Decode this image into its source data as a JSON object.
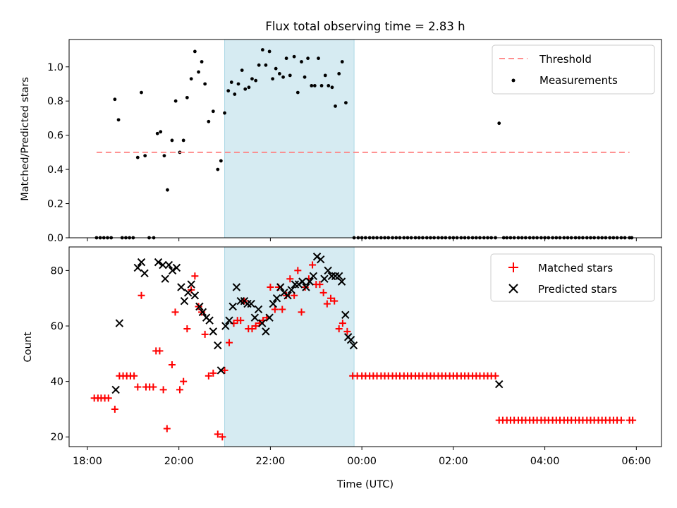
{
  "title": "Flux total observing time = 2.83 h",
  "chart_data": [
    {
      "type": "scatter",
      "ylabel": "Matched/Predicted stars",
      "xlim_hours": [
        17.6,
        30.55
      ],
      "ylim": [
        0,
        1.16
      ],
      "yticks": [
        0.0,
        0.2,
        0.4,
        0.6,
        0.8,
        1.0
      ],
      "ytick_labels": [
        "0.0",
        "0.2",
        "0.4",
        "0.6",
        "0.8",
        "1.0"
      ],
      "legend_position": "top-right",
      "shaded_interval_hours": [
        21.0,
        23.83
      ],
      "threshold_value": 0.5,
      "threshold_x_range_hours": [
        18.2,
        29.85
      ],
      "colors": {
        "threshold": "#ff7f7f",
        "points": "#000000",
        "shade": "#add8e6"
      },
      "legend": {
        "threshold": "Threshold",
        "points": "Measurements"
      },
      "measurements": [
        [
          18.2,
          0
        ],
        [
          18.28,
          0
        ],
        [
          18.36,
          0
        ],
        [
          18.44,
          0
        ],
        [
          18.52,
          0
        ],
        [
          18.6,
          0.81
        ],
        [
          18.68,
          0.69
        ],
        [
          18.76,
          0
        ],
        [
          18.84,
          0
        ],
        [
          18.92,
          0
        ],
        [
          19.0,
          0
        ],
        [
          19.1,
          0.47
        ],
        [
          19.18,
          0.85
        ],
        [
          19.26,
          0.48
        ],
        [
          19.35,
          0
        ],
        [
          19.45,
          0
        ],
        [
          19.53,
          0.61
        ],
        [
          19.6,
          0.62
        ],
        [
          19.68,
          0.48
        ],
        [
          19.75,
          0.28
        ],
        [
          19.85,
          0.57
        ],
        [
          19.93,
          0.8
        ],
        [
          20.02,
          0.5
        ],
        [
          20.1,
          0.57
        ],
        [
          20.18,
          0.82
        ],
        [
          20.27,
          0.93
        ],
        [
          20.35,
          1.09
        ],
        [
          20.43,
          0.97
        ],
        [
          20.5,
          1.03
        ],
        [
          20.57,
          0.9
        ],
        [
          20.65,
          0.68
        ],
        [
          20.75,
          0.74
        ],
        [
          20.85,
          0.4
        ],
        [
          20.92,
          0.45
        ],
        [
          21.0,
          0.73
        ],
        [
          21.08,
          0.86
        ],
        [
          21.15,
          0.91
        ],
        [
          21.22,
          0.84
        ],
        [
          21.3,
          0.9
        ],
        [
          21.38,
          0.98
        ],
        [
          21.45,
          0.87
        ],
        [
          21.53,
          0.88
        ],
        [
          21.6,
          0.93
        ],
        [
          21.68,
          0.92
        ],
        [
          21.75,
          1.01
        ],
        [
          21.83,
          1.1
        ],
        [
          21.9,
          1.01
        ],
        [
          21.98,
          1.09
        ],
        [
          22.05,
          0.93
        ],
        [
          22.12,
          0.99
        ],
        [
          22.2,
          0.96
        ],
        [
          22.28,
          0.94
        ],
        [
          22.35,
          1.05
        ],
        [
          22.43,
          0.95
        ],
        [
          22.52,
          1.06
        ],
        [
          22.6,
          0.85
        ],
        [
          22.68,
          1.03
        ],
        [
          22.75,
          0.94
        ],
        [
          22.82,
          1.05
        ],
        [
          22.9,
          0.89
        ],
        [
          22.97,
          0.89
        ],
        [
          23.05,
          1.05
        ],
        [
          23.12,
          0.89
        ],
        [
          23.2,
          0.95
        ],
        [
          23.27,
          0.89
        ],
        [
          23.35,
          0.88
        ],
        [
          23.42,
          0.77
        ],
        [
          23.5,
          0.96
        ],
        [
          23.57,
          1.03
        ],
        [
          23.65,
          0.79
        ],
        [
          23.83,
          0
        ],
        [
          23.92,
          0
        ],
        [
          24.0,
          0
        ],
        [
          24.08,
          0
        ],
        [
          24.17,
          0
        ],
        [
          24.25,
          0
        ],
        [
          24.33,
          0
        ],
        [
          24.42,
          0
        ],
        [
          24.5,
          0
        ],
        [
          24.58,
          0
        ],
        [
          24.67,
          0
        ],
        [
          24.75,
          0
        ],
        [
          24.83,
          0
        ],
        [
          24.92,
          0
        ],
        [
          25.0,
          0
        ],
        [
          25.08,
          0
        ],
        [
          25.17,
          0
        ],
        [
          25.25,
          0
        ],
        [
          25.33,
          0
        ],
        [
          25.42,
          0
        ],
        [
          25.5,
          0
        ],
        [
          25.58,
          0
        ],
        [
          25.67,
          0
        ],
        [
          25.75,
          0
        ],
        [
          25.83,
          0
        ],
        [
          25.92,
          0
        ],
        [
          26.0,
          0
        ],
        [
          26.08,
          0
        ],
        [
          26.17,
          0
        ],
        [
          26.25,
          0
        ],
        [
          26.33,
          0
        ],
        [
          26.42,
          0
        ],
        [
          26.5,
          0
        ],
        [
          26.58,
          0
        ],
        [
          26.67,
          0
        ],
        [
          26.75,
          0
        ],
        [
          26.83,
          0
        ],
        [
          26.92,
          0
        ],
        [
          27.0,
          0.67
        ],
        [
          27.1,
          0
        ],
        [
          27.17,
          0
        ],
        [
          27.25,
          0
        ],
        [
          27.33,
          0
        ],
        [
          27.42,
          0
        ],
        [
          27.5,
          0
        ],
        [
          27.58,
          0
        ],
        [
          27.67,
          0
        ],
        [
          27.75,
          0
        ],
        [
          27.83,
          0
        ],
        [
          27.92,
          0
        ],
        [
          28.0,
          0
        ],
        [
          28.08,
          0
        ],
        [
          28.17,
          0
        ],
        [
          28.25,
          0
        ],
        [
          28.33,
          0
        ],
        [
          28.42,
          0
        ],
        [
          28.5,
          0
        ],
        [
          28.58,
          0
        ],
        [
          28.67,
          0
        ],
        [
          28.75,
          0
        ],
        [
          28.83,
          0
        ],
        [
          28.92,
          0
        ],
        [
          29.0,
          0
        ],
        [
          29.08,
          0
        ],
        [
          29.17,
          0
        ],
        [
          29.25,
          0
        ],
        [
          29.33,
          0
        ],
        [
          29.42,
          0
        ],
        [
          29.5,
          0
        ],
        [
          29.58,
          0
        ],
        [
          29.67,
          0
        ],
        [
          29.75,
          0
        ],
        [
          29.85,
          0
        ],
        [
          29.9,
          0
        ]
      ]
    },
    {
      "type": "scatter",
      "xlabel": "Time (UTC)",
      "ylabel": "Count",
      "xlim_hours": [
        17.6,
        30.55
      ],
      "ylim": [
        16.5,
        88.5
      ],
      "yticks": [
        20,
        40,
        60,
        80
      ],
      "ytick_labels": [
        "20",
        "40",
        "60",
        "80"
      ],
      "xticks_hours": [
        18,
        20,
        22,
        24,
        26,
        28,
        30
      ],
      "xtick_labels": [
        "18:00",
        "20:00",
        "22:00",
        "00:00",
        "02:00",
        "04:00",
        "06:00"
      ],
      "legend_position": "top-right",
      "shaded_interval_hours": [
        21.0,
        23.83
      ],
      "colors": {
        "matched": "#ff0000",
        "predicted": "#000000",
        "shade": "#add8e6"
      },
      "legend": {
        "matched": "Matched stars",
        "predicted": "Predicted stars"
      },
      "matched": [
        [
          18.15,
          34
        ],
        [
          18.23,
          34
        ],
        [
          18.3,
          34
        ],
        [
          18.38,
          34
        ],
        [
          18.46,
          34
        ],
        [
          18.6,
          30
        ],
        [
          18.7,
          42
        ],
        [
          18.78,
          42
        ],
        [
          18.86,
          42
        ],
        [
          18.94,
          42
        ],
        [
          19.02,
          42
        ],
        [
          19.1,
          38
        ],
        [
          19.18,
          71
        ],
        [
          19.28,
          38
        ],
        [
          19.36,
          38
        ],
        [
          19.44,
          38
        ],
        [
          19.5,
          51
        ],
        [
          19.58,
          51
        ],
        [
          19.66,
          37
        ],
        [
          19.74,
          23
        ],
        [
          19.85,
          46
        ],
        [
          19.92,
          65
        ],
        [
          20.02,
          37
        ],
        [
          20.1,
          40
        ],
        [
          20.18,
          59
        ],
        [
          20.27,
          73
        ],
        [
          20.35,
          78
        ],
        [
          20.43,
          67
        ],
        [
          20.5,
          65
        ],
        [
          20.57,
          57
        ],
        [
          20.65,
          42
        ],
        [
          20.75,
          43
        ],
        [
          20.85,
          21
        ],
        [
          20.95,
          20
        ],
        [
          21.0,
          44
        ],
        [
          21.1,
          54
        ],
        [
          21.2,
          61
        ],
        [
          21.28,
          62
        ],
        [
          21.35,
          62
        ],
        [
          21.43,
          69
        ],
        [
          21.52,
          59
        ],
        [
          21.6,
          59
        ],
        [
          21.68,
          60
        ],
        [
          21.76,
          61
        ],
        [
          21.84,
          62
        ],
        [
          21.92,
          63
        ],
        [
          22.0,
          74
        ],
        [
          22.1,
          66
        ],
        [
          22.18,
          74
        ],
        [
          22.26,
          66
        ],
        [
          22.35,
          71
        ],
        [
          22.43,
          77
        ],
        [
          22.52,
          71
        ],
        [
          22.6,
          80
        ],
        [
          22.68,
          65
        ],
        [
          22.76,
          74
        ],
        [
          22.84,
          77
        ],
        [
          22.92,
          82
        ],
        [
          23.0,
          75
        ],
        [
          23.08,
          75
        ],
        [
          23.16,
          72
        ],
        [
          23.24,
          68
        ],
        [
          23.32,
          70
        ],
        [
          23.4,
          69
        ],
        [
          23.5,
          59
        ],
        [
          23.58,
          61
        ],
        [
          23.68,
          58
        ],
        [
          23.8,
          42
        ],
        [
          23.9,
          42
        ],
        [
          24.0,
          42
        ],
        [
          24.08,
          42
        ],
        [
          24.17,
          42
        ],
        [
          24.25,
          42
        ],
        [
          24.33,
          42
        ],
        [
          24.42,
          42
        ],
        [
          24.5,
          42
        ],
        [
          24.58,
          42
        ],
        [
          24.67,
          42
        ],
        [
          24.75,
          42
        ],
        [
          24.83,
          42
        ],
        [
          24.92,
          42
        ],
        [
          25.0,
          42
        ],
        [
          25.08,
          42
        ],
        [
          25.17,
          42
        ],
        [
          25.25,
          42
        ],
        [
          25.33,
          42
        ],
        [
          25.42,
          42
        ],
        [
          25.5,
          42
        ],
        [
          25.58,
          42
        ],
        [
          25.67,
          42
        ],
        [
          25.75,
          42
        ],
        [
          25.83,
          42
        ],
        [
          25.92,
          42
        ],
        [
          26.0,
          42
        ],
        [
          26.08,
          42
        ],
        [
          26.17,
          42
        ],
        [
          26.25,
          42
        ],
        [
          26.33,
          42
        ],
        [
          26.42,
          42
        ],
        [
          26.5,
          42
        ],
        [
          26.58,
          42
        ],
        [
          26.67,
          42
        ],
        [
          26.75,
          42
        ],
        [
          26.83,
          42
        ],
        [
          26.92,
          42
        ],
        [
          27.0,
          26
        ],
        [
          27.08,
          26
        ],
        [
          27.17,
          26
        ],
        [
          27.25,
          26
        ],
        [
          27.33,
          26
        ],
        [
          27.42,
          26
        ],
        [
          27.5,
          26
        ],
        [
          27.58,
          26
        ],
        [
          27.67,
          26
        ],
        [
          27.75,
          26
        ],
        [
          27.83,
          26
        ],
        [
          27.92,
          26
        ],
        [
          28.0,
          26
        ],
        [
          28.08,
          26
        ],
        [
          28.17,
          26
        ],
        [
          28.25,
          26
        ],
        [
          28.33,
          26
        ],
        [
          28.42,
          26
        ],
        [
          28.5,
          26
        ],
        [
          28.58,
          26
        ],
        [
          28.67,
          26
        ],
        [
          28.75,
          26
        ],
        [
          28.83,
          26
        ],
        [
          28.92,
          26
        ],
        [
          29.0,
          26
        ],
        [
          29.08,
          26
        ],
        [
          29.17,
          26
        ],
        [
          29.25,
          26
        ],
        [
          29.33,
          26
        ],
        [
          29.42,
          26
        ],
        [
          29.5,
          26
        ],
        [
          29.58,
          26
        ],
        [
          29.67,
          26
        ],
        [
          29.85,
          26
        ],
        [
          29.92,
          26
        ]
      ],
      "predicted": [
        [
          18.62,
          37
        ],
        [
          18.7,
          61
        ],
        [
          19.1,
          81
        ],
        [
          19.18,
          83
        ],
        [
          19.25,
          79
        ],
        [
          19.55,
          83
        ],
        [
          19.65,
          82
        ],
        [
          19.7,
          77
        ],
        [
          19.78,
          82
        ],
        [
          19.86,
          80
        ],
        [
          19.95,
          81
        ],
        [
          20.05,
          74
        ],
        [
          20.12,
          69
        ],
        [
          20.2,
          72
        ],
        [
          20.27,
          75
        ],
        [
          20.35,
          71
        ],
        [
          20.45,
          67
        ],
        [
          20.52,
          65
        ],
        [
          20.6,
          63
        ],
        [
          20.67,
          62
        ],
        [
          20.75,
          58
        ],
        [
          20.85,
          53
        ],
        [
          20.92,
          44
        ],
        [
          21.02,
          60
        ],
        [
          21.1,
          62
        ],
        [
          21.18,
          67
        ],
        [
          21.26,
          74
        ],
        [
          21.35,
          69
        ],
        [
          21.43,
          69
        ],
        [
          21.5,
          68
        ],
        [
          21.58,
          68
        ],
        [
          21.66,
          63
        ],
        [
          21.74,
          66
        ],
        [
          21.82,
          61
        ],
        [
          21.9,
          58
        ],
        [
          21.98,
          63
        ],
        [
          22.06,
          68
        ],
        [
          22.14,
          70
        ],
        [
          22.22,
          74
        ],
        [
          22.3,
          72
        ],
        [
          22.38,
          71
        ],
        [
          22.46,
          73
        ],
        [
          22.54,
          75
        ],
        [
          22.62,
          75
        ],
        [
          22.7,
          76
        ],
        [
          22.78,
          74
        ],
        [
          22.86,
          76
        ],
        [
          22.94,
          78
        ],
        [
          23.02,
          85
        ],
        [
          23.1,
          84
        ],
        [
          23.18,
          77
        ],
        [
          23.26,
          80
        ],
        [
          23.34,
          78
        ],
        [
          23.42,
          78
        ],
        [
          23.5,
          78
        ],
        [
          23.56,
          76
        ],
        [
          23.64,
          64
        ],
        [
          23.7,
          56
        ],
        [
          23.76,
          55
        ],
        [
          23.82,
          53
        ],
        [
          27.0,
          39
        ]
      ]
    }
  ]
}
